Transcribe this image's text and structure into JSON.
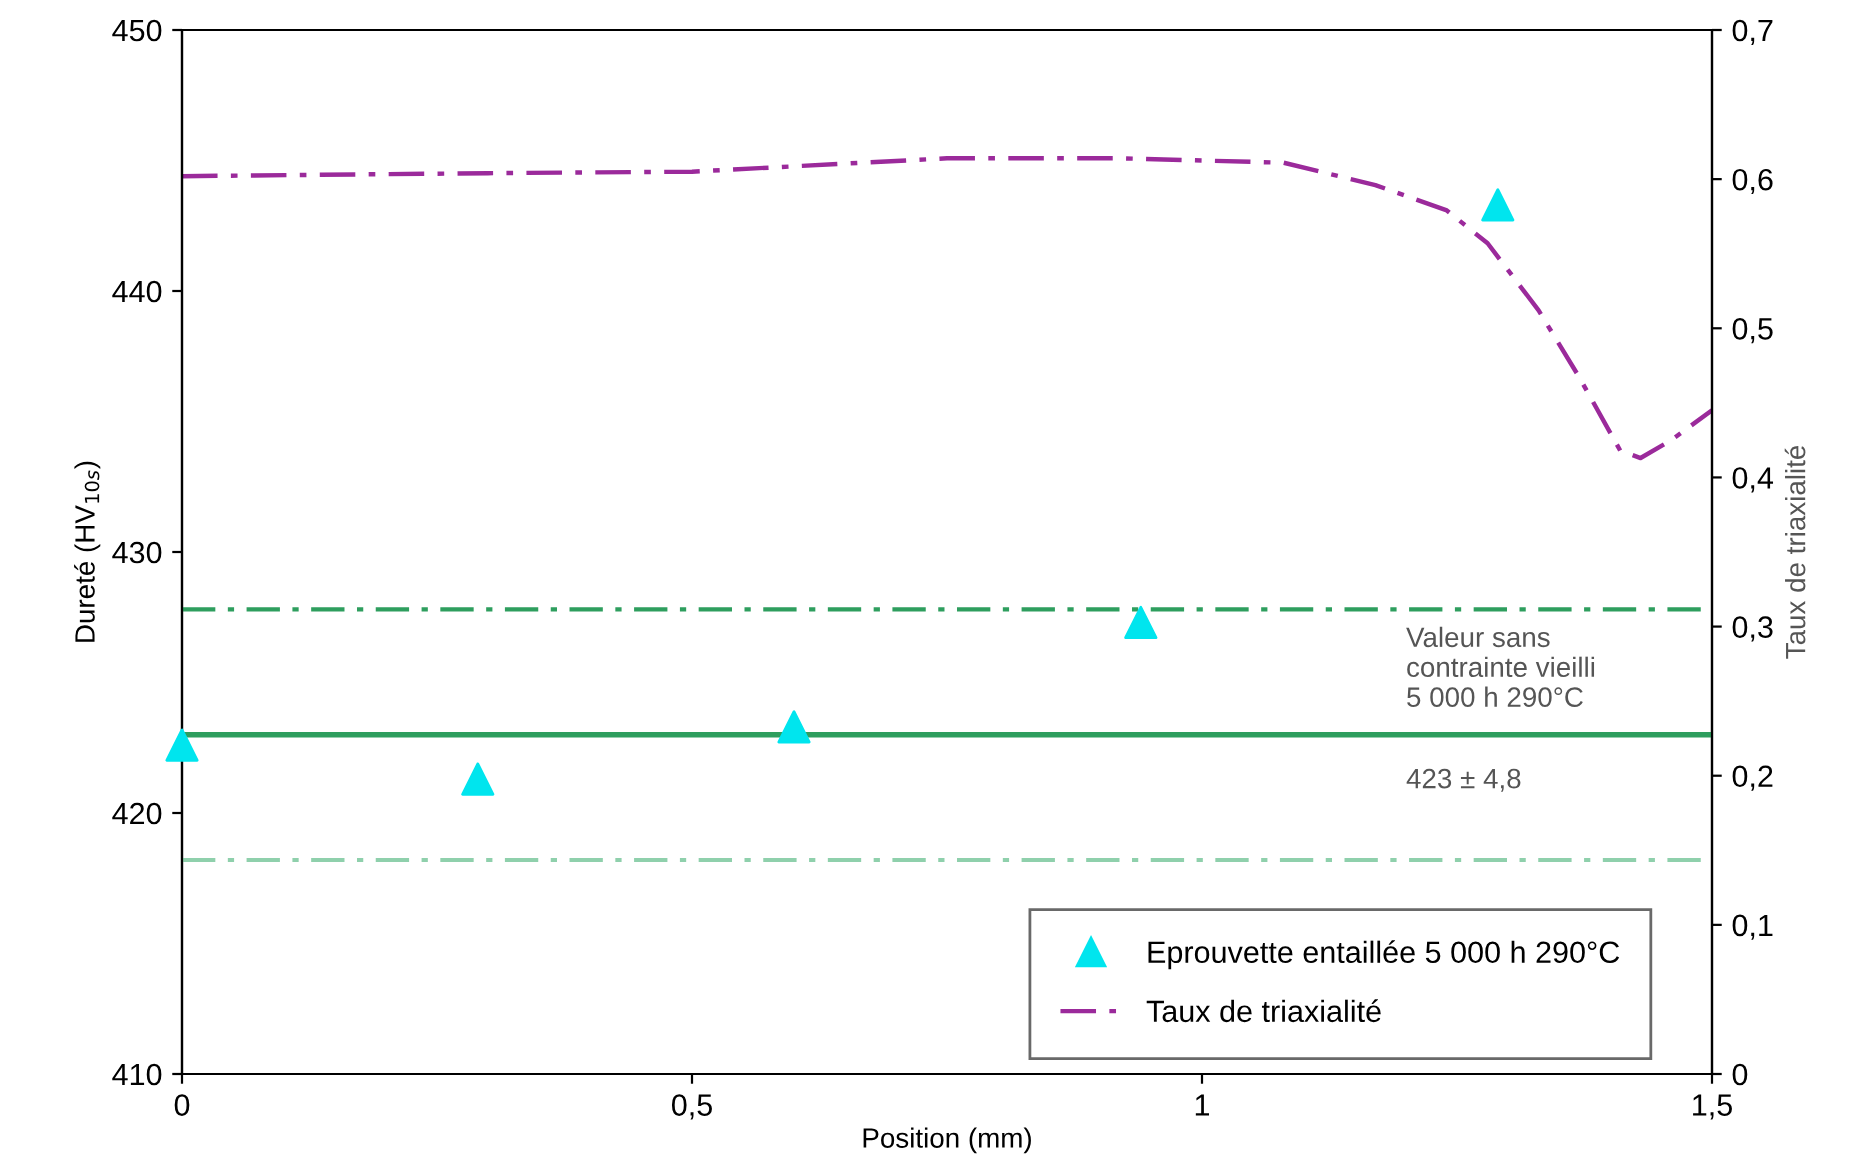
{
  "chart_data": {
    "type": "scatter",
    "xlabel": "Position (mm)",
    "ylabel": "Dureté (HV$_{10s}$)",
    "y2label": "Taux de triaxialité",
    "xlim": [
      0,
      1.5
    ],
    "xticks": [
      0,
      {
        "value": 0.5,
        "label": "0,5"
      },
      1,
      {
        "value": 1.5,
        "label": "1,5"
      }
    ],
    "ylim": [
      410,
      450
    ],
    "yticks": [
      410,
      420,
      430,
      440,
      450
    ],
    "y2lim": [
      0,
      0.7
    ],
    "y2ticks": [
      0,
      {
        "value": 0.1,
        "label": "0,1"
      },
      {
        "value": 0.2,
        "label": "0,2"
      },
      {
        "value": 0.3,
        "label": "0,3"
      },
      {
        "value": 0.4,
        "label": "0,4"
      },
      {
        "value": 0.5,
        "label": "0,5"
      },
      {
        "value": 0.6,
        "label": "0,6"
      },
      {
        "value": 0.7,
        "label": "0,7"
      }
    ],
    "series": [
      {
        "name": "Eprouvette entaillée 5 000 h 290°C",
        "marker": "triangle",
        "color": "#00e5ee",
        "x": [
          0,
          0.29,
          0.6,
          0.94,
          1.29
        ],
        "values": [
          422.6,
          421.3,
          423.3,
          427.3,
          443.3
        ]
      },
      {
        "name": "Taux de triaxialité",
        "type": "line",
        "axis": "y2",
        "line_style": "dashed",
        "color": "#9b2a9b",
        "x": [
          0,
          0.3,
          0.5,
          0.75,
          0.92,
          1.08,
          1.17,
          1.24,
          1.28,
          1.33,
          1.37,
          1.41,
          1.43,
          1.46,
          1.5
        ],
        "values": [
          0.602,
          0.604,
          0.605,
          0.614,
          0.614,
          0.611,
          0.596,
          0.579,
          0.557,
          0.512,
          0.467,
          0.418,
          0.413,
          0.425,
          0.445
        ]
      }
    ],
    "ref_lines": [
      {
        "axis": "y",
        "value": 427.8,
        "color": "#2e9e5e",
        "line_style": "dashed"
      },
      {
        "axis": "y",
        "value": 423,
        "color": "#2e9e5e",
        "line_style": "solid"
      },
      {
        "axis": "y",
        "value": 418.2,
        "color": "#8fd0ac",
        "line_style": "dashed"
      }
    ],
    "annotations": [
      {
        "text": "Valeur sans\ncontrainte vieilli\n5 000 h 290°C",
        "x": 1.2,
        "y": 423
      },
      {
        "text": "423 ± 4,8",
        "x": 1.2,
        "y": 423
      }
    ],
    "legend": "bottom right",
    "grid": false
  }
}
